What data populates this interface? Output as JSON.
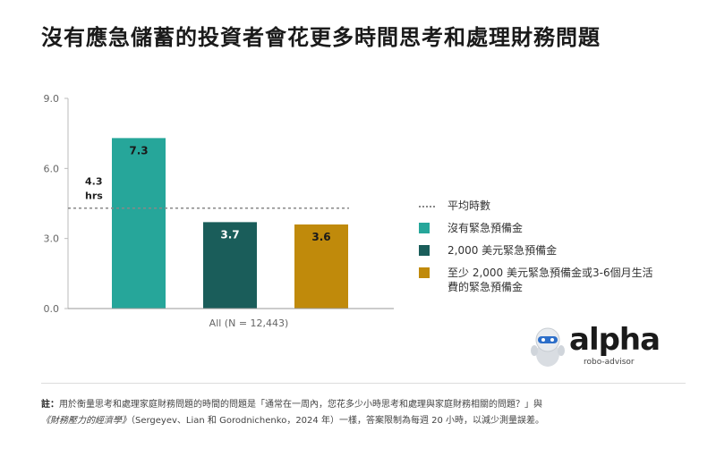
{
  "title": "沒有應急儲蓄的投資者會花更多時間思考和處理財務問題",
  "colors": {
    "teal": "#26a69a",
    "dark_teal": "#1a5d5a",
    "gold": "#c08a0b",
    "avg_line": "#888888",
    "axis": "#888888"
  },
  "chart_data": {
    "type": "bar",
    "categories": [
      "All (N = 12,443)"
    ],
    "xlabel": "All (N = 12,443)",
    "ylabel": "",
    "ylim": [
      0,
      9
    ],
    "yticks": [
      "0.0",
      "3.0",
      "6.0",
      "9.0"
    ],
    "grid": false,
    "legend_placement": "right",
    "series": [
      {
        "name": "沒有緊急預備金",
        "values": [
          7.3
        ],
        "label": "7.3",
        "color": "#26a69a"
      },
      {
        "name": "2,000 美元緊急預備金",
        "values": [
          3.7
        ],
        "label": "3.7",
        "color": "#1a5d5a"
      },
      {
        "name": "至少 2,000 美元緊急預備金或3-6個月生活費的緊急預備金",
        "values": [
          3.6
        ],
        "label": "3.6",
        "color": "#c08a0b"
      }
    ],
    "reference_line": {
      "name": "平均時數",
      "value": 4.3,
      "label_value": "4.3",
      "label_unit": "hrs"
    }
  },
  "legend": {
    "avg": "平均時數",
    "s1_line1": "沒有緊急預備金",
    "s2_line1": "2,000 美元緊急預備金",
    "s3_line1": "至少 2,000 美元緊急預備金或3-6個月生活",
    "s3_line2": "費的緊急預備金"
  },
  "logo": {
    "name": "alpha",
    "sub": "robo-advisor"
  },
  "note": {
    "label": "註：",
    "text1": "用於衡量思考和處理家庭財務問題的時間的問題是「通常在一周內，您花多少小時思考和處理與家庭財務相關的問題？」與",
    "ref": "《財務壓力的經濟學》",
    "text2": "（Sergeyev、Lian 和 Gorodnichenko，2024 年）一樣，答案限制為每週 20 小時，以減少測量誤差。"
  }
}
